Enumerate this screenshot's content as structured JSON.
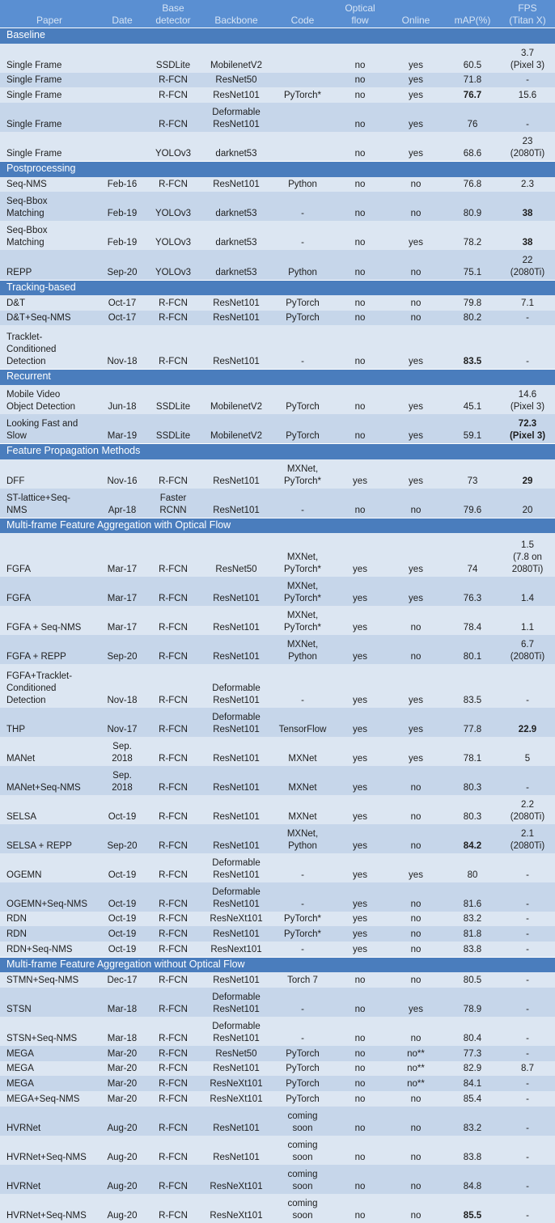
{
  "header": [
    "Paper",
    "Date",
    "Base\ndetector",
    "Backbone",
    "Code",
    "Optical\nflow",
    "Online",
    "mAP(%)",
    "FPS\n(Titan X)"
  ],
  "sections": [
    {
      "title": "Baseline",
      "rows": [
        [
          "Single Frame",
          "",
          "SSDLite",
          "MobilenetV2",
          "",
          "no",
          "yes",
          "60.5",
          "3.7\n(Pixel 3)"
        ],
        [
          "Single Frame",
          "",
          "R-FCN",
          "ResNet50",
          "",
          "no",
          "yes",
          "71.8",
          "-"
        ],
        [
          "Single Frame",
          "",
          "R-FCN",
          "ResNet101",
          "PyTorch*",
          "no",
          "yes",
          {
            "text": "76.7",
            "bold": true
          },
          "15.6"
        ],
        [
          "Single Frame",
          "",
          "R-FCN",
          "Deformable\nResNet101",
          "",
          "no",
          "yes",
          "76",
          "-"
        ],
        [
          "Single Frame",
          "",
          "YOLOv3",
          "darknet53",
          "",
          "no",
          "yes",
          "68.6",
          "23\n(2080Ti)"
        ]
      ]
    },
    {
      "title": "Postprocessing",
      "rows": [
        [
          "Seq-NMS",
          "Feb-16",
          "R-FCN",
          "ResNet101",
          "Python",
          "no",
          "no",
          "76.8",
          "2.3"
        ],
        [
          "Seq-Bbox\nMatching",
          "Feb-19",
          "YOLOv3",
          "darknet53",
          "-",
          "no",
          "no",
          "80.9",
          {
            "text": "38",
            "bold": true
          }
        ],
        [
          "Seq-Bbox\nMatching",
          "Feb-19",
          "YOLOv3",
          "darknet53",
          "-",
          "no",
          "yes",
          "78.2",
          {
            "text": "38",
            "bold": true
          }
        ],
        [
          "REPP",
          "Sep-20",
          "YOLOv3",
          "darknet53",
          "Python",
          "no",
          "no",
          "75.1",
          "22\n(2080Ti)"
        ]
      ]
    },
    {
      "title": "Tracking-based",
      "rows": [
        [
          "D&T",
          "Oct-17",
          "R-FCN",
          "ResNet101",
          "PyTorch",
          "no",
          "no",
          "79.8",
          "7.1"
        ],
        [
          "D&T+Seq-NMS",
          "Oct-17",
          "R-FCN",
          "ResNet101",
          "PyTorch",
          "no",
          "no",
          "80.2",
          "-"
        ],
        [
          "Tracklet-\nConditioned\nDetection",
          "Nov-18",
          "R-FCN",
          "ResNet101",
          "-",
          "no",
          "yes",
          {
            "text": "83.5",
            "bold": true
          },
          "-"
        ]
      ]
    },
    {
      "title": "Recurrent",
      "rows": [
        [
          "Mobile Video\nObject Detection",
          "Jun-18",
          "SSDLite",
          "MobilenetV2",
          "PyTorch",
          "no",
          "yes",
          "45.1",
          "14.6\n(Pixel 3)"
        ],
        [
          "Looking Fast and\nSlow",
          "Mar-19",
          "SSDLite",
          "MobilenetV2",
          "PyTorch",
          "no",
          "yes",
          "59.1",
          {
            "text": "72.3\n(Pixel 3)",
            "bold": true
          }
        ]
      ]
    },
    {
      "title": "Feature Propagation Methods",
      "rows": [
        [
          "DFF",
          "Nov-16",
          "R-FCN",
          "ResNet101",
          "MXNet,\nPyTorch*",
          "yes",
          "yes",
          "73",
          {
            "text": "29",
            "bold": true
          }
        ],
        [
          "ST-lattice+Seq-\nNMS",
          "Apr-18",
          "Faster\nRCNN",
          "ResNet101",
          "-",
          "no",
          "no",
          "79.6",
          "20"
        ]
      ]
    },
    {
      "title": "Multi-frame Feature Aggregation with Optical Flow",
      "rows": [
        [
          "FGFA",
          "Mar-17",
          "R-FCN",
          "ResNet50",
          "MXNet,\nPyTorch*",
          "yes",
          "yes",
          "74",
          "1.5\n(7.8 on\n2080Ti)"
        ],
        [
          "FGFA",
          "Mar-17",
          "R-FCN",
          "ResNet101",
          "MXNet,\nPyTorch*",
          "yes",
          "yes",
          "76.3",
          "1.4"
        ],
        [
          "FGFA + Seq-NMS",
          "Mar-17",
          "R-FCN",
          "ResNet101",
          "MXNet,\nPyTorch*",
          "yes",
          "no",
          "78.4",
          "1.1"
        ],
        [
          "FGFA + REPP",
          "Sep-20",
          "R-FCN",
          "ResNet101",
          "MXNet,\nPython",
          "yes",
          "no",
          "80.1",
          "6.7\n(2080Ti)"
        ],
        [
          "FGFA+Tracklet-\nConditioned\nDetection",
          "Nov-18",
          "R-FCN",
          "Deformable\nResNet101",
          "-",
          "yes",
          "yes",
          "83.5",
          "-"
        ],
        [
          "THP",
          "Nov-17",
          "R-FCN",
          "Deformable\nResNet101",
          "TensorFlow",
          "yes",
          "yes",
          "77.8",
          {
            "text": "22.9",
            "bold": true
          }
        ],
        [
          "MANet",
          "Sep.\n2018",
          "R-FCN",
          "ResNet101",
          "MXNet",
          "yes",
          "yes",
          "78.1",
          "5"
        ],
        [
          "MANet+Seq-NMS",
          "Sep.\n2018",
          "R-FCN",
          "ResNet101",
          "MXNet",
          "yes",
          "no",
          "80.3",
          "-"
        ],
        [
          "SELSA",
          "Oct-19",
          "R-FCN",
          "ResNet101",
          "MXNet",
          "yes",
          "no",
          "80.3",
          "2.2\n(2080Ti)"
        ],
        [
          "SELSA + REPP",
          "Sep-20",
          "R-FCN",
          "ResNet101",
          "MXNet,\nPython",
          "yes",
          "no",
          {
            "text": "84.2",
            "bold": true
          },
          "2.1\n(2080Ti)"
        ],
        [
          "OGEMN",
          "Oct-19",
          "R-FCN",
          "Deformable\nResNet101",
          "-",
          "yes",
          "yes",
          "80",
          "-"
        ],
        [
          "OGEMN+Seq-NMS",
          "Oct-19",
          "R-FCN",
          "Deformable\nResNet101",
          "-",
          "yes",
          "no",
          "81.6",
          "-"
        ],
        [
          "RDN",
          "Oct-19",
          "R-FCN",
          "ResNeXt101",
          "PyTorch*",
          "yes",
          "no",
          "83.2",
          "-"
        ],
        [
          "RDN",
          "Oct-19",
          "R-FCN",
          "ResNet101",
          "PyTorch*",
          "yes",
          "no",
          "81.8",
          "-"
        ],
        [
          "RDN+Seq-NMS",
          "Oct-19",
          "R-FCN",
          "ResNext101",
          "-",
          "yes",
          "no",
          "83.8",
          "-"
        ]
      ]
    },
    {
      "title": "Multi-frame Feature Aggregation without Optical Flow",
      "rows": [
        [
          "STMN+Seq-NMS",
          "Dec-17",
          "R-FCN",
          "ResNet101",
          "Torch 7",
          "no",
          "no",
          "80.5",
          "-"
        ],
        [
          "STSN",
          "Mar-18",
          "R-FCN",
          "Deformable\nResNet101",
          "-",
          "no",
          "yes",
          "78.9",
          "-"
        ],
        [
          "STSN+Seq-NMS",
          "Mar-18",
          "R-FCN",
          "Deformable\nResNet101",
          "-",
          "no",
          "no",
          "80.4",
          "-"
        ],
        [
          "MEGA",
          "Mar-20",
          "R-FCN",
          "ResNet50",
          "PyTorch",
          "no",
          "no**",
          "77.3",
          "-"
        ],
        [
          "MEGA",
          "Mar-20",
          "R-FCN",
          "ResNet101",
          "PyTorch",
          "no",
          "no**",
          "82.9",
          "8.7"
        ],
        [
          "MEGA",
          "Mar-20",
          "R-FCN",
          "ResNeXt101",
          "PyTorch",
          "no",
          "no**",
          "84.1",
          "-"
        ],
        [
          "MEGA+Seq-NMS",
          "Mar-20",
          "R-FCN",
          "ResNeXt101",
          "PyTorch",
          "no",
          "no",
          "85.4",
          "-"
        ],
        [
          "HVRNet",
          "Aug-20",
          "R-FCN",
          "ResNet101",
          "coming\nsoon",
          "no",
          "no",
          "83.2",
          "-"
        ],
        [
          "HVRNet+Seq-NMS",
          "Aug-20",
          "R-FCN",
          "ResNet101",
          "coming\nsoon",
          "no",
          "no",
          "83.8",
          "-"
        ],
        [
          "HVRNet",
          "Aug-20",
          "R-FCN",
          "ResNeXt101",
          "coming\nsoon",
          "no",
          "no",
          "84.8",
          "-"
        ],
        [
          "HVRNet+Seq-NMS",
          "Aug-20",
          "R-FCN",
          "ResNeXt101",
          "coming\nsoon",
          "no",
          "no",
          {
            "text": "85.5",
            "bold": true
          },
          "-"
        ]
      ]
    }
  ]
}
